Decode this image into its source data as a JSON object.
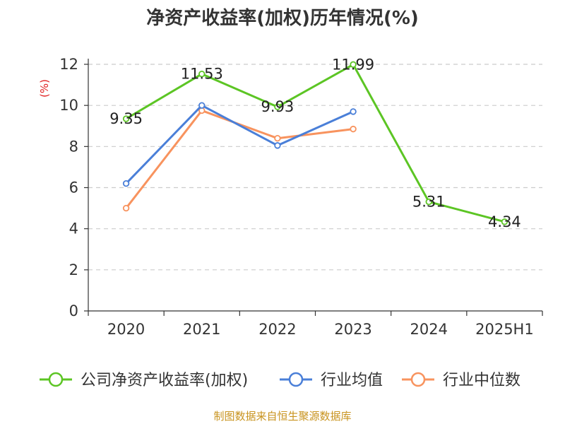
{
  "title": "净资产收益率(加权)历年情况(%)",
  "source": "制图数据来自恒生聚源数据库",
  "chart_data": {
    "type": "line",
    "title": "净资产收益率(加权)历年情况(%)",
    "unit_label": "(%)",
    "categories": [
      "2020",
      "2021",
      "2022",
      "2023",
      "2024",
      "2025H1"
    ],
    "y_ticks": [
      "0",
      "2",
      "4",
      "6",
      "8",
      "10",
      "12"
    ],
    "ylim": [
      0,
      12
    ],
    "grid": "horizontal dashed",
    "legend_position": "bottom",
    "series": [
      {
        "name": "公司净资产收益率(加权)",
        "color": "#5cc524",
        "values": [
          9.35,
          11.53,
          9.93,
          11.99,
          5.31,
          4.34
        ],
        "labels": [
          "9.35",
          "11.53",
          "9.93",
          "11.99",
          "5.31",
          "4.34"
        ]
      },
      {
        "name": "行业均值",
        "color": "#4a7fd8",
        "values": [
          6.2,
          10.0,
          8.05,
          9.7,
          null,
          null
        ]
      },
      {
        "name": "行业中位数",
        "color": "#f8935e",
        "values": [
          5.0,
          9.75,
          8.4,
          8.85,
          null,
          null
        ]
      }
    ]
  }
}
